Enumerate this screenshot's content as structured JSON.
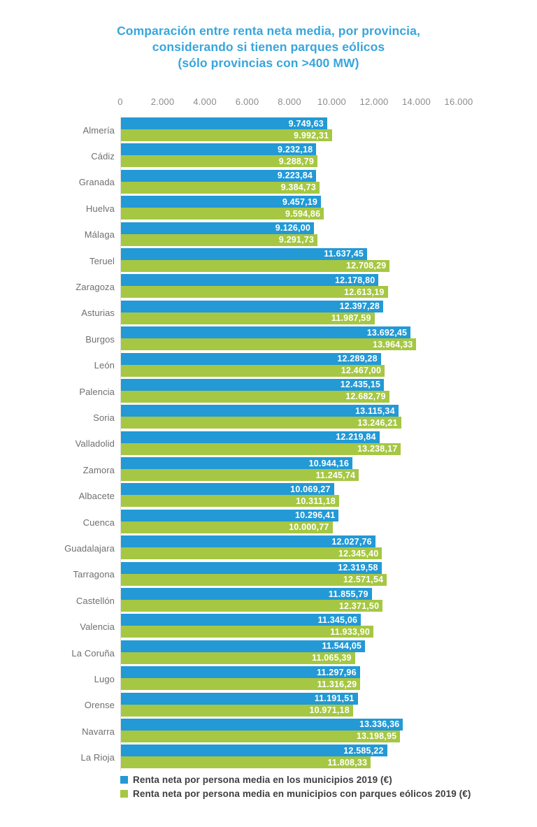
{
  "title": "Comparación entre renta neta media, por provincia,\nconsiderando si tienen parques eólicos\n(sólo provincias con >400 MW)",
  "colors": {
    "title_blue": "#38a5dc",
    "bar_blue": "#2399d5",
    "bar_green": "#a6c743",
    "background": "#ffffff"
  },
  "chart_data": {
    "type": "bar",
    "orientation": "horizontal",
    "title": "Comparación entre renta neta media, por provincia, considerando si tienen parques eólicos (sólo provincias con >400 MW)",
    "grid": false,
    "legend_position": "bottom",
    "categories": [
      "Almería",
      "Cádiz",
      "Granada",
      "Huelva",
      "Málaga",
      "Teruel",
      "Zaragoza",
      "Asturias",
      "Burgos",
      "León",
      "Palencia",
      "Soria",
      "Valladolid",
      "Zamora",
      "Albacete",
      "Cuenca",
      "Guadalajara",
      "Tarragona",
      "Castellón",
      "Valencia",
      "La Coruña",
      "Lugo",
      "Orense",
      "Navarra",
      "La Rioja"
    ],
    "series": [
      {
        "name": "Renta neta por persona media en los municipios 2019 (€)",
        "color": "#2399d5",
        "values": [
          9749.63,
          9232.18,
          9223.84,
          9457.19,
          9126.0,
          11637.45,
          12178.8,
          12397.28,
          13692.45,
          12289.28,
          12435.15,
          13115.34,
          12219.84,
          10944.16,
          10069.27,
          10296.41,
          12027.76,
          12319.58,
          11855.79,
          11345.06,
          11544.05,
          11297.96,
          11191.51,
          13336.36,
          12585.22
        ],
        "labels": [
          "9.749,63",
          "9.232,18",
          "9.223,84",
          "9.457,19",
          "9.126,00",
          "11.637,45",
          "12.178,80",
          "12.397,28",
          "13.692,45",
          "12.289,28",
          "12.435,15",
          "13.115,34",
          "12.219,84",
          "10.944,16",
          "10.069,27",
          "10.296,41",
          "12.027,76",
          "12.319,58",
          "11.855,79",
          "11.345,06",
          "11.544,05",
          "11.297,96",
          "11.191,51",
          "13.336,36",
          "12.585,22"
        ]
      },
      {
        "name": "Renta neta por persona media en municipios con parques eólicos 2019 (€)",
        "color": "#a6c743",
        "values": [
          9992.31,
          9288.79,
          9384.73,
          9594.86,
          9291.73,
          12708.29,
          12613.19,
          11987.59,
          13964.33,
          12467.0,
          12682.79,
          13246.21,
          13238.17,
          11245.74,
          10311.18,
          10000.77,
          12345.4,
          12571.54,
          12371.5,
          11933.9,
          11065.39,
          11316.29,
          10971.18,
          13198.95,
          11808.33
        ],
        "labels": [
          "9.992,31",
          "9.288,79",
          "9.384,73",
          "9.594,86",
          "9.291,73",
          "12.708,29",
          "12.613,19",
          "11.987,59",
          "13.964,33",
          "12.467,00",
          "12.682,79",
          "13.246,21",
          "13.238,17",
          "11.245,74",
          "10.311,18",
          "10.000,77",
          "12.345,40",
          "12.571,54",
          "12.371,50",
          "11.933,90",
          "11.065,39",
          "11.316,29",
          "10.971,18",
          "13.198,95",
          "11.808,33"
        ]
      }
    ],
    "x_axis": {
      "min": 0,
      "max": 16000,
      "tick_values": [
        0,
        2000,
        4000,
        6000,
        8000,
        10000,
        12000,
        14000,
        16000
      ],
      "tick_labels": [
        "0",
        "2.000",
        "4.000",
        "6.000",
        "8.000",
        "10.000",
        "12.000",
        "14.000",
        "16.000"
      ]
    }
  }
}
